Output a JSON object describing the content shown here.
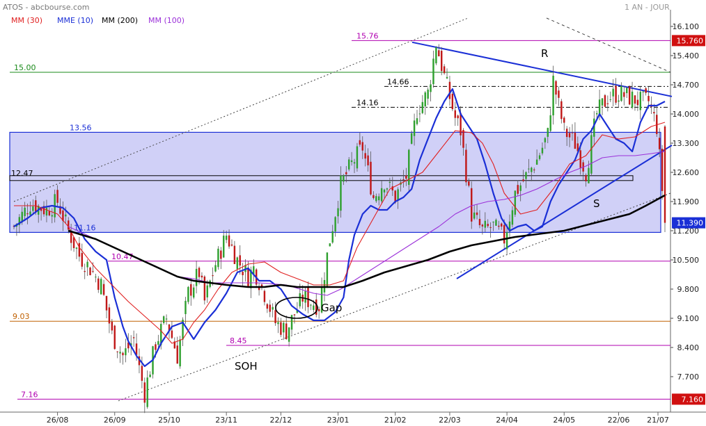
{
  "header": {
    "symbol": "ATOS - abcbourse.com",
    "period": "1 AN - JOUR",
    "legend": [
      {
        "label": "MM (30)",
        "color": "#e02020"
      },
      {
        "label": "MME (10)",
        "color": "#1a2fd6"
      },
      {
        "label": "MM (200)",
        "color": "#000000"
      },
      {
        "label": "MM (100)",
        "color": "#9b30d9"
      }
    ]
  },
  "chart_data": {
    "type": "candlestick",
    "y_range": [
      6.85,
      16.5
    ],
    "y_ticks": [
      16.1,
      15.4,
      14.7,
      14.0,
      13.3,
      12.6,
      11.9,
      11.2,
      10.5,
      9.8,
      9.1,
      8.4,
      7.7
    ],
    "x_ticks": [
      "26/08",
      "26/09",
      "25/10",
      "23/11",
      "22/12",
      "23/01",
      "21/02",
      "22/03",
      "24/04",
      "24/05",
      "22/06",
      "21/07"
    ],
    "grid": false,
    "price_tags": [
      {
        "label": "15.760",
        "value": 15.76,
        "color": "#d01010"
      },
      {
        "label": "11.390",
        "value": 11.39,
        "color": "#1a2fd6"
      },
      {
        "label": "7.160",
        "value": 7.16,
        "color": "#d01010"
      }
    ],
    "horizontal_levels": [
      {
        "label": "15.76",
        "value": 15.76,
        "color": "#b000b0"
      },
      {
        "label": "15.00",
        "value": 15.0,
        "color": "#1a8a1a"
      },
      {
        "label": "14.66",
        "value": 14.66,
        "color": "#000000"
      },
      {
        "label": "14.16",
        "value": 14.16,
        "color": "#000000"
      },
      {
        "label": "13.56",
        "value": 13.56,
        "color": "#1a2fd6"
      },
      {
        "label": "12.47",
        "value": 12.47,
        "color": "#000000"
      },
      {
        "label": "11.16",
        "value": 11.16,
        "color": "#1a2fd6"
      },
      {
        "label": "10.47",
        "value": 10.47,
        "color": "#b000b0"
      },
      {
        "label": "9.03",
        "value": 9.03,
        "color": "#c06000"
      },
      {
        "label": "8.45",
        "value": 8.45,
        "color": "#b000b0"
      },
      {
        "label": "7.16",
        "value": 7.16,
        "color": "#b000b0"
      }
    ],
    "annotations": [
      "R",
      "S",
      "Gap",
      "SOH"
    ],
    "series": [
      {
        "name": "MME (10)",
        "color": "#1a2fd6",
        "x": [
          0,
          5,
          10,
          14,
          18,
          22,
          26,
          30,
          34,
          37,
          40,
          42,
          45,
          48,
          51,
          54,
          58,
          62,
          66,
          70,
          74,
          78,
          82,
          86,
          90,
          94,
          98,
          102,
          106,
          110,
          114,
          118,
          121,
          123,
          125,
          128,
          131,
          134,
          137,
          140,
          143,
          146,
          149,
          152,
          155,
          158,
          161,
          164,
          167,
          170,
          173,
          176,
          179,
          182,
          185,
          188,
          191,
          194,
          197,
          200,
          203,
          206,
          209,
          212,
          215,
          218,
          221,
          224,
          227,
          230,
          233,
          236,
          239
        ],
        "y": [
          11.3,
          11.5,
          11.75,
          11.8,
          11.75,
          11.5,
          11.0,
          10.7,
          10.5,
          9.6,
          8.9,
          8.55,
          8.2,
          7.95,
          8.1,
          8.5,
          8.9,
          9.0,
          8.6,
          9.0,
          9.3,
          9.7,
          10.2,
          10.3,
          10.0,
          10.0,
          9.8,
          9.4,
          9.2,
          9.05,
          9.05,
          9.25,
          9.6,
          10.5,
          11.1,
          11.6,
          11.8,
          11.7,
          11.7,
          11.9,
          12.0,
          12.2,
          12.9,
          13.4,
          13.9,
          14.3,
          14.6,
          14.0,
          13.7,
          13.4,
          12.8,
          12.1,
          11.5,
          11.2,
          11.3,
          11.35,
          11.2,
          11.3,
          11.9,
          12.3,
          12.6,
          12.9,
          13.4,
          13.6,
          14.0,
          13.7,
          13.4,
          13.3,
          13.1,
          13.8,
          14.2,
          14.2,
          14.3
        ]
      },
      {
        "name": "MM (30)",
        "color": "#e02020",
        "x": [
          0,
          8,
          16,
          20,
          24,
          30,
          36,
          42,
          48,
          54,
          58,
          62,
          66,
          70,
          75,
          80,
          86,
          92,
          98,
          104,
          110,
          116,
          121,
          126,
          132,
          138,
          144,
          150,
          156,
          162,
          168,
          172,
          176,
          180,
          186,
          192,
          198,
          204,
          210,
          216,
          222,
          228,
          234,
          239
        ],
        "y": [
          11.8,
          11.8,
          11.6,
          11.3,
          10.8,
          10.3,
          9.9,
          9.5,
          9.15,
          8.8,
          8.5,
          8.6,
          9.0,
          9.3,
          9.8,
          10.2,
          10.4,
          10.45,
          10.2,
          10.05,
          9.9,
          9.9,
          10.0,
          10.8,
          11.5,
          12.2,
          12.4,
          12.6,
          13.1,
          13.6,
          13.55,
          13.3,
          12.8,
          12.1,
          11.6,
          11.7,
          12.2,
          12.8,
          13.0,
          13.5,
          13.4,
          13.45,
          13.7,
          13.8
        ]
      },
      {
        "name": "MM (100)",
        "color": "#9b30d9",
        "x": [
          20,
          30,
          40,
          50,
          60,
          66,
          72,
          80,
          90,
          100,
          105,
          110,
          115,
          120,
          126,
          132,
          138,
          144,
          150,
          156,
          162,
          168,
          174,
          180,
          186,
          192,
          198,
          204,
          210,
          216,
          222,
          228,
          234,
          239
        ],
        "y": [
          11.3,
          11.0,
          10.7,
          10.4,
          10.1,
          10.05,
          9.95,
          9.95,
          9.95,
          9.9,
          9.8,
          9.7,
          9.65,
          9.8,
          10.05,
          10.3,
          10.55,
          10.8,
          11.05,
          11.3,
          11.6,
          11.8,
          11.9,
          11.95,
          12.05,
          12.2,
          12.4,
          12.6,
          12.75,
          12.95,
          13.0,
          13.0,
          13.05,
          13.1
        ]
      },
      {
        "name": "MM (200)",
        "color": "#000000",
        "x": [
          20,
          30,
          40,
          50,
          60,
          66,
          72,
          78,
          86,
          92,
          98,
          104,
          110,
          116,
          121,
          128,
          136,
          144,
          152,
          160,
          168,
          176,
          184,
          190,
          196,
          202,
          208,
          214,
          220,
          226,
          232,
          239
        ],
        "y": [
          11.2,
          11.0,
          10.7,
          10.4,
          10.1,
          10.0,
          9.95,
          9.9,
          9.85,
          9.85,
          9.9,
          9.85,
          9.85,
          9.85,
          9.85,
          10.0,
          10.2,
          10.35,
          10.5,
          10.7,
          10.85,
          10.95,
          11.05,
          11.1,
          11.15,
          11.2,
          11.3,
          11.4,
          11.5,
          11.6,
          11.8,
          12.05
        ]
      }
    ],
    "anchors": [
      [
        0,
        11.3
      ],
      [
        6,
        11.85
      ],
      [
        12,
        11.7
      ],
      [
        16,
        11.9
      ],
      [
        20,
        11.2
      ],
      [
        24,
        10.6
      ],
      [
        28,
        10.3
      ],
      [
        32,
        9.9
      ],
      [
        36,
        8.7
      ],
      [
        40,
        8.2
      ],
      [
        44,
        8.6
      ],
      [
        46,
        7.9
      ],
      [
        48,
        7.3
      ],
      [
        52,
        8.5
      ],
      [
        56,
        9.1
      ],
      [
        60,
        8.2
      ],
      [
        64,
        9.7
      ],
      [
        68,
        10.2
      ],
      [
        70,
        9.5
      ],
      [
        74,
        10.4
      ],
      [
        78,
        11.1
      ],
      [
        82,
        10.5
      ],
      [
        86,
        10.1
      ],
      [
        88,
        10.3
      ],
      [
        92,
        9.7
      ],
      [
        96,
        9.0
      ],
      [
        100,
        8.8
      ],
      [
        106,
        9.6
      ],
      [
        112,
        9.4
      ],
      [
        116,
        11.0
      ],
      [
        120,
        12.3
      ],
      [
        124,
        12.8
      ],
      [
        128,
        13.2
      ],
      [
        132,
        12.0
      ],
      [
        136,
        12.4
      ],
      [
        140,
        12.0
      ],
      [
        144,
        12.5
      ],
      [
        148,
        14.1
      ],
      [
        152,
        14.5
      ],
      [
        155,
        15.7
      ],
      [
        158,
        14.9
      ],
      [
        162,
        13.9
      ],
      [
        164,
        13.6
      ],
      [
        168,
        11.6
      ],
      [
        172,
        11.2
      ],
      [
        176,
        11.3
      ],
      [
        180,
        11.0
      ],
      [
        184,
        12.1
      ],
      [
        188,
        12.5
      ],
      [
        192,
        12.9
      ],
      [
        196,
        13.5
      ],
      [
        198,
        14.8
      ],
      [
        202,
        13.6
      ],
      [
        206,
        13.3
      ],
      [
        210,
        12.6
      ],
      [
        214,
        14.0
      ],
      [
        218,
        14.4
      ],
      [
        222,
        14.5
      ],
      [
        226,
        14.4
      ],
      [
        230,
        14.3
      ],
      [
        233,
        14.3
      ],
      [
        236,
        13.7
      ],
      [
        238,
        12.2
      ],
      [
        239,
        11.39
      ]
    ]
  }
}
